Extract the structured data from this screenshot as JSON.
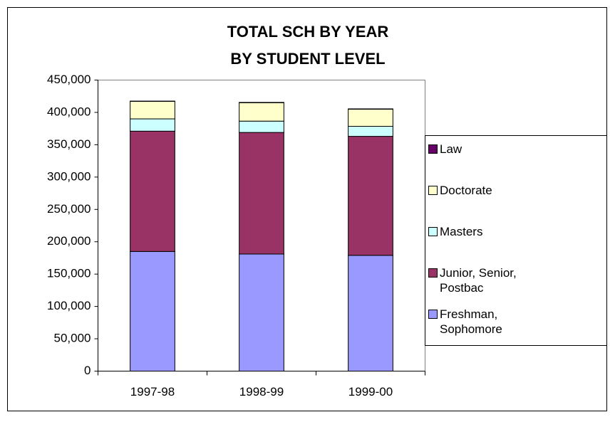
{
  "chart_data": {
    "type": "stacked_bar",
    "title": [
      "TOTAL SCH BY YEAR",
      "BY STUDENT LEVEL"
    ],
    "categories": [
      "1997-98",
      "1998-99",
      "1999-00"
    ],
    "series": [
      {
        "name": "Freshman, Sophomore",
        "color": "#9999ff",
        "values": [
          185000,
          181000,
          179000
        ]
      },
      {
        "name": "Junior, Senior, Postbac",
        "color": "#993366",
        "values": [
          186000,
          188000,
          184000
        ]
      },
      {
        "name": "Masters",
        "color": "#ccffff",
        "values": [
          19000,
          17500,
          15500
        ]
      },
      {
        "name": "Doctorate",
        "color": "#ffffcc",
        "values": [
          27000,
          28500,
          26500
        ]
      },
      {
        "name": "Law",
        "color": "#660066",
        "values": [
          500,
          500,
          500
        ]
      }
    ],
    "ylim": [
      0,
      450000
    ],
    "yticks": [
      0,
      {
        "value": 50000,
        "label": "50,000"
      },
      {
        "value": 100000,
        "label": "100,000"
      },
      {
        "value": 150000,
        "label": "150,000"
      },
      {
        "value": 200000,
        "label": "200,000"
      },
      {
        "value": 250000,
        "label": "250,000"
      },
      {
        "value": 300000,
        "label": "300,000"
      },
      {
        "value": 350000,
        "label": "350,000"
      },
      {
        "value": 400000,
        "label": "400,000"
      },
      {
        "value": 450000,
        "label": "450,000"
      }
    ],
    "grid": false,
    "legend": "right"
  }
}
